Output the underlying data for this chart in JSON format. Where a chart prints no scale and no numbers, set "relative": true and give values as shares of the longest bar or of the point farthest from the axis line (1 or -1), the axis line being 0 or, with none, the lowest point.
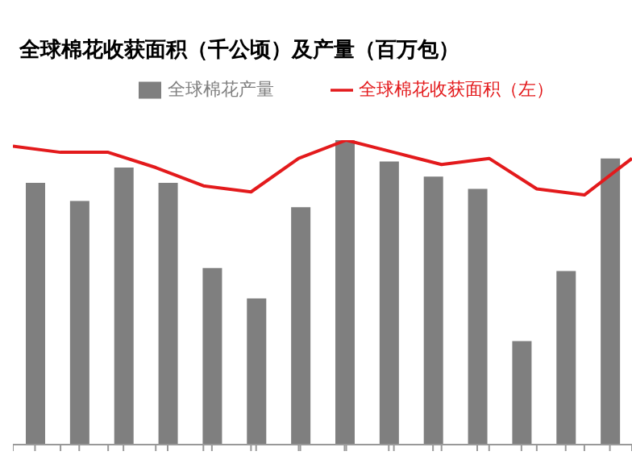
{
  "chart_data": [
    {
      "type": "bar",
      "title": "全球棉花收获面积（千公顷）及产量（百万包）",
      "relative": true,
      "legend": "top",
      "categories": [
        null,
        null,
        null,
        null,
        null,
        null,
        null,
        null,
        null,
        null,
        null,
        null,
        null,
        null
      ],
      "series": [
        {
          "name": "全球棉花产量",
          "color": "#7f7f7f",
          "values": [
            0.86,
            0.8,
            0.91,
            0.86,
            0.58,
            0.48,
            0.78,
            1,
            0.93,
            0.88,
            0.84,
            0.34,
            0.57,
            0.94
          ]
        }
      ]
    },
    {
      "type": "line",
      "relative": true,
      "legend": "top",
      "categories": [
        null,
        null,
        null,
        null,
        null,
        null,
        null,
        null,
        null,
        null,
        null,
        null,
        null,
        null
      ],
      "series": [
        {
          "name": "全球棉花收获面积（左）",
          "color": "#e31a1c",
          "values": [
            0.98,
            0.96,
            0.96,
            0.91,
            0.85,
            0.83,
            0.94,
            1,
            0.96,
            0.92,
            0.94,
            0.84,
            0.82,
            0.94
          ]
        }
      ]
    }
  ]
}
